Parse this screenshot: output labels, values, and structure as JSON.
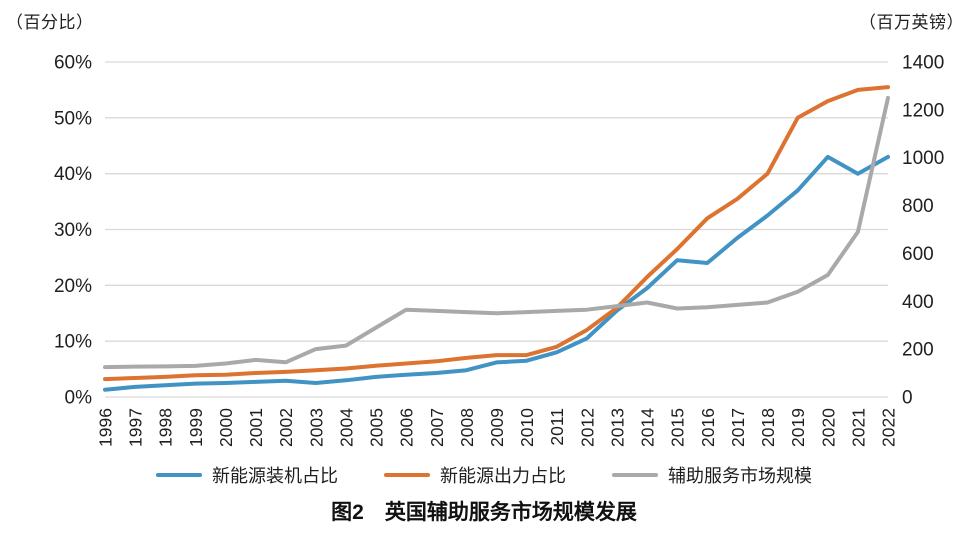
{
  "chart_data": {
    "type": "line",
    "title": "图2　英国辅助服务市场规模发展",
    "grid": "horizontal",
    "grid_color": "#d9d9d9",
    "text_color": "#1f1f1f",
    "legend_position": "bottom",
    "left_axis": {
      "label": "（百分比）",
      "min": 0,
      "max": 60,
      "ticks": [
        "60%",
        "50%",
        "40%",
        "30%",
        "20%",
        "10%",
        "0%"
      ]
    },
    "right_axis": {
      "label": "（百万英镑）",
      "min": 0,
      "max": 1400,
      "ticks": [
        "1400",
        "1200",
        "1000",
        "800",
        "600",
        "400",
        "200",
        "0"
      ]
    },
    "x": [
      1996,
      1997,
      1998,
      1999,
      2000,
      2001,
      2002,
      2003,
      2004,
      2005,
      2006,
      2007,
      2008,
      2009,
      2010,
      2011,
      2012,
      2013,
      2014,
      2015,
      2016,
      2017,
      2018,
      2019,
      2020,
      2021,
      2022
    ],
    "series": [
      {
        "name": "新能源装机占比",
        "axis": "left",
        "unit": "%",
        "color": "#4193c4",
        "values": [
          1.3,
          1.8,
          2.1,
          2.4,
          2.5,
          2.7,
          2.9,
          2.5,
          3.0,
          3.6,
          4.0,
          4.3,
          4.8,
          6.2,
          6.5,
          8.0,
          10.5,
          15.5,
          19.5,
          24.5,
          24.0,
          28.5,
          32.5,
          37.0,
          43.0,
          40.0,
          43.0
        ]
      },
      {
        "name": "新能源出力占比",
        "axis": "left",
        "unit": "%",
        "color": "#dc7330",
        "values": [
          3.2,
          3.4,
          3.6,
          3.9,
          4.0,
          4.3,
          4.5,
          4.8,
          5.1,
          5.6,
          6.0,
          6.4,
          7.0,
          7.5,
          7.5,
          9.0,
          12.0,
          16.0,
          21.5,
          26.5,
          32.0,
          35.5,
          40.0,
          50.0,
          53.0,
          55.0,
          55.5
        ]
      },
      {
        "name": "辅助服务市场规模",
        "axis": "right",
        "unit": "百万英镑",
        "color": "#a9a9a9",
        "values": [
          125,
          127,
          128,
          130,
          140,
          155,
          145,
          200,
          215,
          290,
          365,
          360,
          355,
          350,
          355,
          360,
          365,
          380,
          395,
          370,
          375,
          385,
          395,
          440,
          510,
          690,
          1250
        ]
      }
    ]
  }
}
